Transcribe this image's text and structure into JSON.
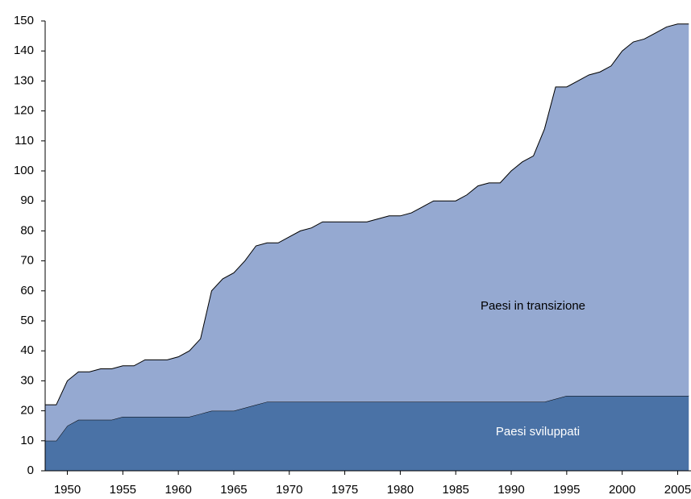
{
  "chart_data": {
    "type": "stacked_area",
    "x": [
      1948,
      1949,
      1950,
      1951,
      1952,
      1953,
      1954,
      1955,
      1956,
      1957,
      1958,
      1959,
      1960,
      1961,
      1962,
      1963,
      1964,
      1965,
      1966,
      1967,
      1968,
      1969,
      1970,
      1971,
      1972,
      1973,
      1974,
      1975,
      1976,
      1977,
      1978,
      1979,
      1980,
      1981,
      1982,
      1983,
      1984,
      1985,
      1986,
      1987,
      1988,
      1989,
      1990,
      1991,
      1992,
      1993,
      1994,
      1995,
      1996,
      1997,
      1998,
      1999,
      2000,
      2001,
      2002,
      2003,
      2004,
      2005,
      2006
    ],
    "series": [
      {
        "name": "Paesi sviluppati",
        "color": "#4a72a6",
        "label_color": "#ffffff",
        "values": [
          10,
          10,
          15,
          17,
          17,
          17,
          17,
          18,
          18,
          18,
          18,
          18,
          18,
          18,
          19,
          20,
          20,
          20,
          21,
          22,
          23,
          23,
          23,
          23,
          23,
          23,
          23,
          23,
          23,
          23,
          23,
          23,
          23,
          23,
          23,
          23,
          23,
          23,
          23,
          23,
          23,
          23,
          23,
          23,
          23,
          23,
          24,
          25,
          25,
          25,
          25,
          25,
          25,
          25,
          25,
          25,
          25,
          25,
          25
        ]
      },
      {
        "name": "Paesi in transizione",
        "color": "#95a9d1",
        "label_color": "#000000",
        "values": [
          12,
          12,
          15,
          16,
          16,
          17,
          17,
          17,
          17,
          19,
          19,
          19,
          20,
          22,
          25,
          40,
          44,
          46,
          49,
          53,
          53,
          53,
          55,
          57,
          58,
          60,
          60,
          60,
          60,
          60,
          61,
          62,
          62,
          63,
          65,
          67,
          67,
          67,
          69,
          72,
          73,
          73,
          77,
          80,
          82,
          91,
          104,
          103,
          105,
          107,
          108,
          110,
          115,
          118,
          119,
          121,
          123,
          124,
          124
        ]
      }
    ],
    "xlim": [
      1948,
      2006.2
    ],
    "ylim": [
      0,
      150
    ],
    "xticks": [
      1950,
      1955,
      1960,
      1965,
      1970,
      1975,
      1980,
      1985,
      1990,
      1995,
      2000,
      2005
    ],
    "yticks": [
      0,
      10,
      20,
      30,
      40,
      50,
      60,
      70,
      80,
      90,
      100,
      110,
      120,
      130,
      140,
      150
    ]
  }
}
